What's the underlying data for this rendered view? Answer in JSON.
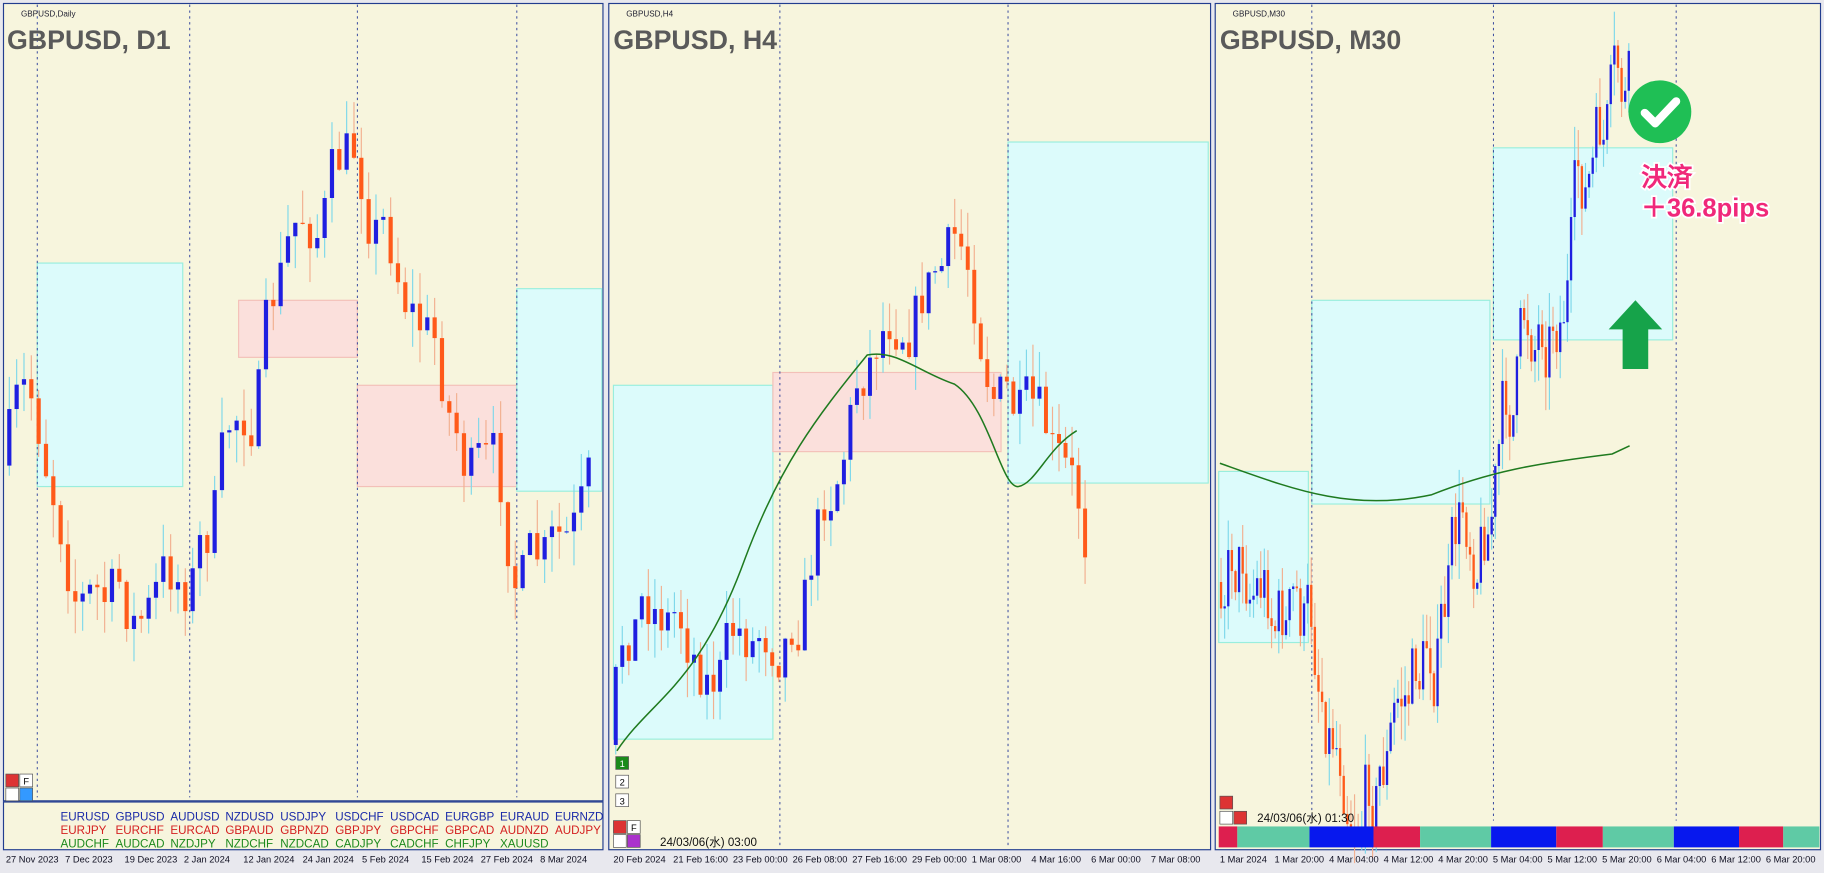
{
  "panels": [
    {
      "label": "GBPUSD,Daily",
      "title": "GBPUSD, D1",
      "dates": [
        "27 Nov 2023",
        "7 Dec 2023",
        "19 Dec 2023",
        "2 Jan 2024",
        "12 Jan 2024",
        "24 Jan 2024",
        "5 Feb 2024",
        "15 Feb 2024",
        "27 Feb 2024",
        "8 Mar 2024"
      ],
      "buttons": [
        "F"
      ]
    },
    {
      "label": "GBPUSD,H4",
      "title": "GBPUSD, H4",
      "dates": [
        "20 Feb 2024",
        "21 Feb 16:00",
        "23 Feb 00:00",
        "26 Feb 08:00",
        "27 Feb 16:00",
        "29 Feb 00:00",
        "1 Mar 08:00",
        "4 Mar 16:00",
        "6 Mar 00:00",
        "7 Mar 08:00"
      ],
      "buttons": [
        "1",
        "2",
        "3",
        "F"
      ],
      "timestamp": "24/03/06(水) 03:00"
    },
    {
      "label": "GBPUSD,M30",
      "title": "GBPUSD, M30",
      "dates": [
        "1 Mar 2024",
        "1 Mar 20:00",
        "4 Mar 04:00",
        "4 Mar 12:00",
        "4 Mar 20:00",
        "5 Mar 04:00",
        "5 Mar 12:00",
        "5 Mar 20:00",
        "6 Mar 04:00",
        "6 Mar 12:00",
        "6 Mar 20:00"
      ],
      "timestamp": "24/03/06(水) 01:30",
      "annotation": [
        "決済",
        "＋36.8pips"
      ]
    }
  ],
  "symbols": [
    [
      "EURUSD",
      "GBPUSD",
      "AUDUSD",
      "NZDUSD",
      "USDJPY",
      "USDCHF",
      "USDCAD",
      "EURGBP",
      "EURAUD",
      "EURNZD"
    ],
    [
      "EURJPY",
      "EURCHF",
      "EURCAD",
      "GBPAUD",
      "GBPNZD",
      "GBPJPY",
      "GBPCHF",
      "GBPCAD",
      "AUDNZD",
      "AUDJPY"
    ],
    [
      "AUDCHF",
      "AUDCAD",
      "NZDJPY",
      "NZDCHF",
      "NZDCAD",
      "CADJPY",
      "CADCHF",
      "CHFJPY",
      "XAUUSD"
    ]
  ]
}
